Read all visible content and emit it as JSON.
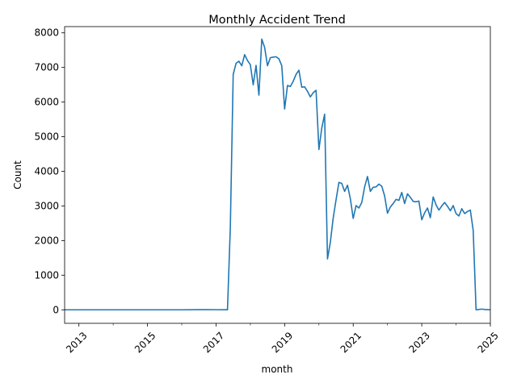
{
  "chart_data": {
    "type": "line",
    "title": "Monthly Accident Trend",
    "xlabel": "month",
    "ylabel": "Count",
    "xlim": [
      "2012-08",
      "2025-01"
    ],
    "ylim": [
      -390,
      8180
    ],
    "x_ticks": [
      "2013",
      "2015",
      "2017",
      "2019",
      "2021",
      "2023",
      "2025"
    ],
    "y_ticks": [
      0,
      1000,
      2000,
      3000,
      4000,
      5000,
      6000,
      7000,
      8000
    ],
    "grid": false,
    "color": "#1f77b4",
    "series": [
      {
        "x": [
          "2012-08",
          "2013-01",
          "2014-01",
          "2015-01",
          "2016-01",
          "2016-07",
          "2017-01",
          "2017-05",
          "2017-06",
          "2017-07",
          "2017-08",
          "2017-09",
          "2017-10",
          "2017-11",
          "2017-12",
          "2018-01",
          "2018-02",
          "2018-03",
          "2018-04",
          "2018-05",
          "2018-06",
          "2018-07",
          "2018-08",
          "2018-09",
          "2018-10",
          "2018-11",
          "2018-12",
          "2019-01",
          "2019-02",
          "2019-03",
          "2019-04",
          "2019-05",
          "2019-06",
          "2019-07",
          "2019-08",
          "2019-09",
          "2019-10",
          "2019-11",
          "2019-12",
          "2020-01",
          "2020-02",
          "2020-03",
          "2020-04",
          "2020-05",
          "2020-06",
          "2020-07",
          "2020-08",
          "2020-09",
          "2020-10",
          "2020-11",
          "2020-12",
          "2021-01",
          "2021-02",
          "2021-03",
          "2021-04",
          "2021-05",
          "2021-06",
          "2021-07",
          "2021-08",
          "2021-09",
          "2021-10",
          "2021-11",
          "2021-12",
          "2022-01",
          "2022-02",
          "2022-03",
          "2022-04",
          "2022-05",
          "2022-06",
          "2022-07",
          "2022-08",
          "2022-09",
          "2022-10",
          "2022-11",
          "2022-12",
          "2023-01",
          "2023-02",
          "2023-03",
          "2023-04",
          "2023-05",
          "2023-06",
          "2023-07",
          "2023-08",
          "2023-09",
          "2023-10",
          "2023-11",
          "2023-12",
          "2024-01",
          "2024-02",
          "2024-03",
          "2024-04",
          "2024-05",
          "2024-06",
          "2024-07",
          "2024-08",
          "2024-09",
          "2024-10",
          "2024-11",
          "2024-12",
          "2025-01"
        ],
        "values": [
          0,
          0,
          0,
          0,
          0,
          5,
          3,
          2,
          2400,
          6800,
          7120,
          7180,
          7050,
          7370,
          7200,
          7080,
          6500,
          7060,
          6200,
          7820,
          7580,
          7050,
          7280,
          7300,
          7310,
          7250,
          7050,
          5800,
          6480,
          6450,
          6600,
          6800,
          6920,
          6430,
          6440,
          6310,
          6150,
          6270,
          6340,
          4630,
          5250,
          5650,
          1470,
          1950,
          2650,
          3180,
          3680,
          3650,
          3420,
          3600,
          3210,
          2640,
          3010,
          2940,
          3100,
          3550,
          3850,
          3420,
          3540,
          3550,
          3630,
          3570,
          3290,
          2790,
          2970,
          3070,
          3190,
          3160,
          3390,
          3070,
          3350,
          3250,
          3130,
          3120,
          3140,
          2600,
          2800,
          2940,
          2660,
          3260,
          3030,
          2880,
          3000,
          3100,
          2990,
          2860,
          3010,
          2780,
          2710,
          2920,
          2780,
          2840,
          2880,
          2290,
          0,
          10,
          20,
          10,
          5,
          0
        ]
      }
    ]
  }
}
